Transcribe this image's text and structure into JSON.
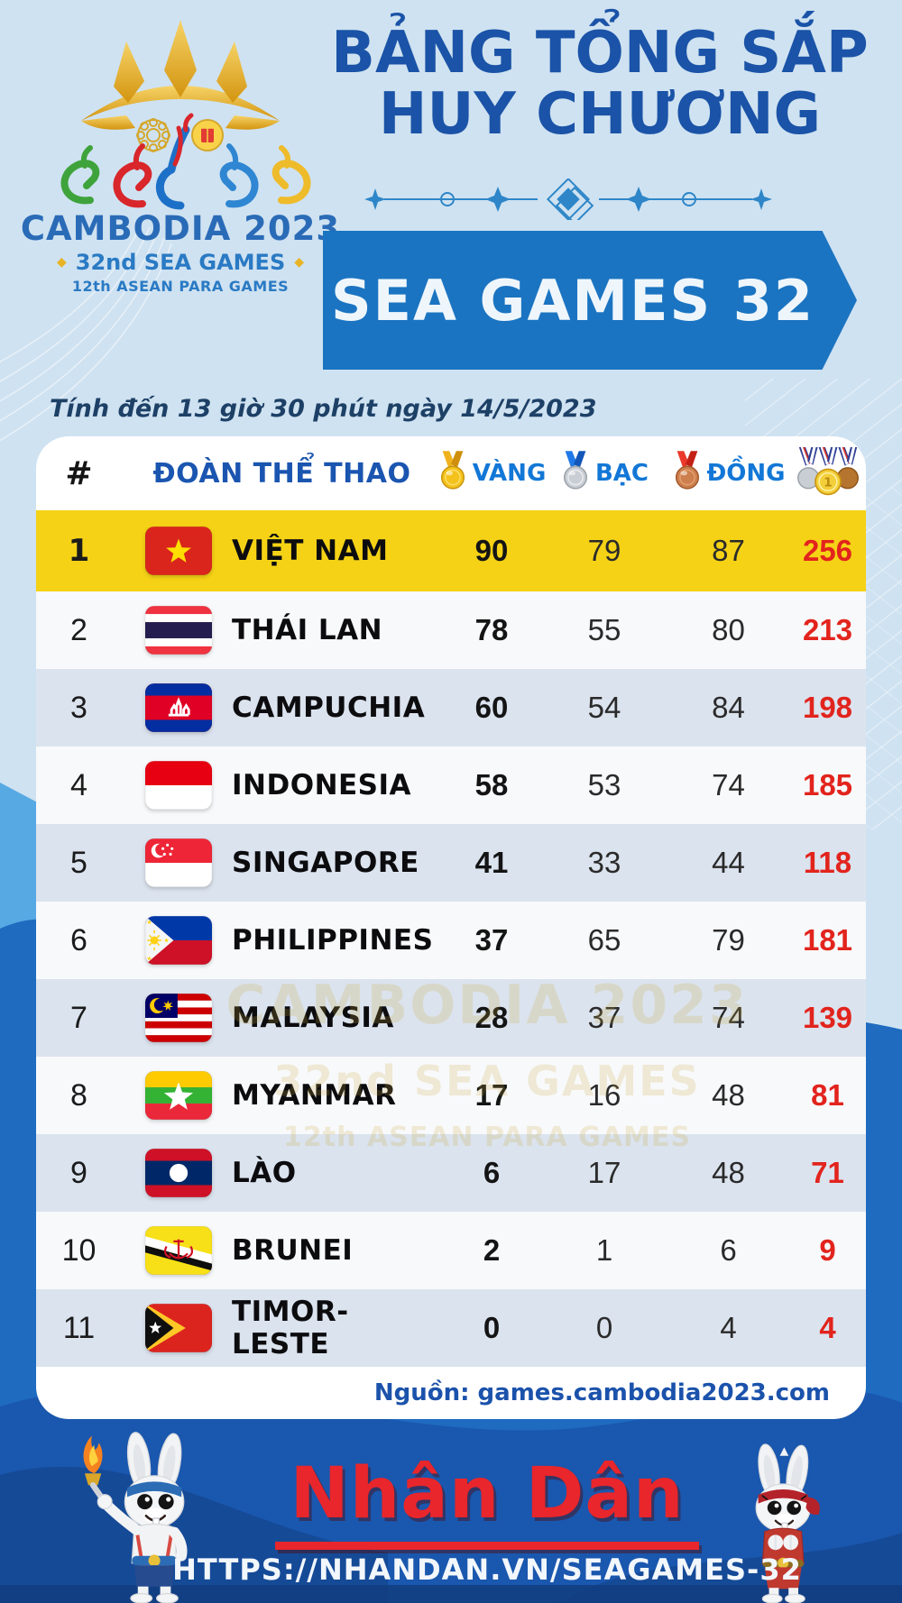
{
  "logo": {
    "event": "CAMBODIA 2023",
    "sub1": "32nd SEA GAMES",
    "sub2": "12th ASEAN PARA GAMES"
  },
  "header": {
    "title_line1": "BẢNG TỔNG SẮP",
    "title_line2": "HUY CHƯƠNG",
    "banner": "SEA GAMES 32"
  },
  "meta": {
    "updated": "Tính đến 13 giờ 30 phút ngày 14/5/2023",
    "source": "Nguồn: games.cambodia2023.com"
  },
  "table": {
    "columns": {
      "rank": "#",
      "team": "ĐOÀN THỂ THAO",
      "gold": "VÀNG",
      "silver": "BẠC",
      "bronze": "ĐỒNG"
    },
    "rows": [
      {
        "rank": "1",
        "country": "VIỆT NAM",
        "flag": "vietnam",
        "gold": "90",
        "silver": "79",
        "bronze": "87",
        "total": "256",
        "highlight": true
      },
      {
        "rank": "2",
        "country": "THÁI LAN",
        "flag": "thailand",
        "gold": "78",
        "silver": "55",
        "bronze": "80",
        "total": "213"
      },
      {
        "rank": "3",
        "country": "CAMPUCHIA",
        "flag": "cambodia",
        "gold": "60",
        "silver": "54",
        "bronze": "84",
        "total": "198"
      },
      {
        "rank": "4",
        "country": "INDONESIA",
        "flag": "indonesia",
        "gold": "58",
        "silver": "53",
        "bronze": "74",
        "total": "185"
      },
      {
        "rank": "5",
        "country": "SINGAPORE",
        "flag": "singapore",
        "gold": "41",
        "silver": "33",
        "bronze": "44",
        "total": "118"
      },
      {
        "rank": "6",
        "country": "PHILIPPINES",
        "flag": "philippines",
        "gold": "37",
        "silver": "65",
        "bronze": "79",
        "total": "181"
      },
      {
        "rank": "7",
        "country": "MALAYSIA",
        "flag": "malaysia",
        "gold": "28",
        "silver": "37",
        "bronze": "74",
        "total": "139"
      },
      {
        "rank": "8",
        "country": "MYANMAR",
        "flag": "myanmar",
        "gold": "17",
        "silver": "16",
        "bronze": "48",
        "total": "81"
      },
      {
        "rank": "9",
        "country": "LÀO",
        "flag": "laos",
        "gold": "6",
        "silver": "17",
        "bronze": "48",
        "total": "71"
      },
      {
        "rank": "10",
        "country": "BRUNEI",
        "flag": "brunei",
        "gold": "2",
        "silver": "1",
        "bronze": "6",
        "total": "9"
      },
      {
        "rank": "11",
        "country": "TIMOR-LESTE",
        "flag": "timor_leste",
        "gold": "0",
        "silver": "0",
        "bronze": "4",
        "total": "4"
      }
    ]
  },
  "watermark": {
    "line1": "CAMBODIA 2023",
    "line2": "32nd SEA GAMES",
    "line3": "12th ASEAN PARA GAMES"
  },
  "footer": {
    "brand": "Nhân Dân",
    "url": "HTTPS://NHANDAN.VN/SEAGAMES-32"
  },
  "colors": {
    "page_bg": "#cfe2f1",
    "banner_blue": "#1b74c1",
    "title_navy": "#1a53a7",
    "gold_row": "#f5d216",
    "alt_row": "#dbe3ee",
    "total_red": "#e2241d",
    "source_blue": "#1b52ab",
    "brand_red": "#e8262b"
  },
  "chart_data": {
    "type": "table",
    "title": "BẢNG TỔNG SẮP HUY CHƯƠNG — SEA GAMES 32",
    "as_of": "Tính đến 13 giờ 30 phút ngày 14/5/2023",
    "columns": [
      "#",
      "ĐOÀN THỂ THAO",
      "VÀNG",
      "BẠC",
      "ĐỒNG",
      "TỔNG"
    ],
    "rows": [
      [
        1,
        "VIỆT NAM",
        90,
        79,
        87,
        256
      ],
      [
        2,
        "THÁI LAN",
        78,
        55,
        80,
        213
      ],
      [
        3,
        "CAMPUCHIA",
        60,
        54,
        84,
        198
      ],
      [
        4,
        "INDONESIA",
        58,
        53,
        74,
        185
      ],
      [
        5,
        "SINGAPORE",
        41,
        33,
        44,
        118
      ],
      [
        6,
        "PHILIPPINES",
        37,
        65,
        79,
        181
      ],
      [
        7,
        "MALAYSIA",
        28,
        37,
        74,
        139
      ],
      [
        8,
        "MYANMAR",
        17,
        16,
        48,
        81
      ],
      [
        9,
        "LÀO",
        6,
        17,
        48,
        71
      ],
      [
        10,
        "BRUNEI",
        2,
        1,
        6,
        9
      ],
      [
        11,
        "TIMOR-LESTE",
        0,
        0,
        4,
        4
      ]
    ],
    "source": "games.cambodia2023.com"
  }
}
